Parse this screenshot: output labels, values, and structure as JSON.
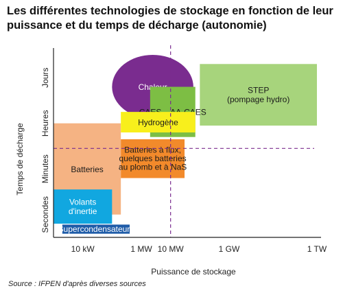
{
  "page": {
    "title": "Les différentes technologies de stockage en fonction de leur puissance et du temps de décharge (autonomie)",
    "source": "Source : IFPEN d'après diverses sources"
  },
  "chart_data": {
    "type": "area",
    "xlabel": "Puissance de stockage",
    "ylabel": "Temps de décharge",
    "x_scale": "log",
    "x_unit": "W",
    "xlim": [
      1000,
      1000000000000
    ],
    "x_ticks": [
      {
        "label": "10 kW",
        "value": 10000
      },
      {
        "label": "1 MW",
        "value": 1000000
      },
      {
        "label": "10 MW",
        "value": 10000000
      },
      {
        "label": "1 GW",
        "value": 1000000000
      },
      {
        "label": "1 TW",
        "value": 1000000000000
      }
    ],
    "y_ticks": [
      "Secondes",
      "Minutes",
      "Heures",
      "Jours"
    ],
    "ylim": [
      0,
      4
    ],
    "reference_lines": {
      "vertical_at_x": 10000000,
      "horizontal_at_y": 1.95,
      "style": "dashed",
      "color": "#7a2c8f"
    },
    "areas": [
      {
        "name": "Chaleur",
        "shape": "ellipse",
        "x": [
          100000,
          60000000
        ],
        "y": [
          2.6,
          4.0
        ],
        "color": "#7a2c8f",
        "text_color": "#ffffff"
      },
      {
        "name": "STEP\n(pompage hydro)",
        "shape": "rect",
        "x": [
          100000000,
          1000000000000
        ],
        "y": [
          2.45,
          3.8
        ],
        "color": "#a7d47c",
        "text_color": "#1a1a1a"
      },
      {
        "name": "CAES – AA-CAES",
        "shape": "rect",
        "x": [
          2000000,
          70000000
        ],
        "y": [
          2.2,
          3.3
        ],
        "color": "#7dbe44",
        "text_color": "#1a1a1a"
      },
      {
        "name": "Batteries",
        "shape": "rect",
        "x": [
          1000,
          200000
        ],
        "y": [
          0.5,
          2.5
        ],
        "color": "#f5b383",
        "text_color": "#1a1a1a"
      },
      {
        "name": "Hydrogène",
        "shape": "rect",
        "x": [
          200000,
          70000000
        ],
        "y": [
          2.3,
          2.75
        ],
        "color": "#f8ef1c",
        "text_color": "#1a1a1a"
      },
      {
        "name": "Batteries à flux,\nquelques batteries\nau plomb et à NaS",
        "shape": "rect",
        "x": [
          200000,
          30000000
        ],
        "y": [
          1.3,
          2.15
        ],
        "color": "#f28a2b",
        "text_color": "#1a1a1a"
      },
      {
        "name": "Volants\nd'inertie",
        "shape": "rect",
        "x": [
          1000,
          100000
        ],
        "y": [
          0.3,
          1.05
        ],
        "color": "#11a7e0",
        "text_color": "#ffffff"
      },
      {
        "name": "Supercondensateurs",
        "shape": "rect",
        "x": [
          2000,
          400000
        ],
        "y": [
          0.08,
          0.28
        ],
        "color": "#1f5ca8",
        "text_color": "#ffffff"
      }
    ]
  }
}
